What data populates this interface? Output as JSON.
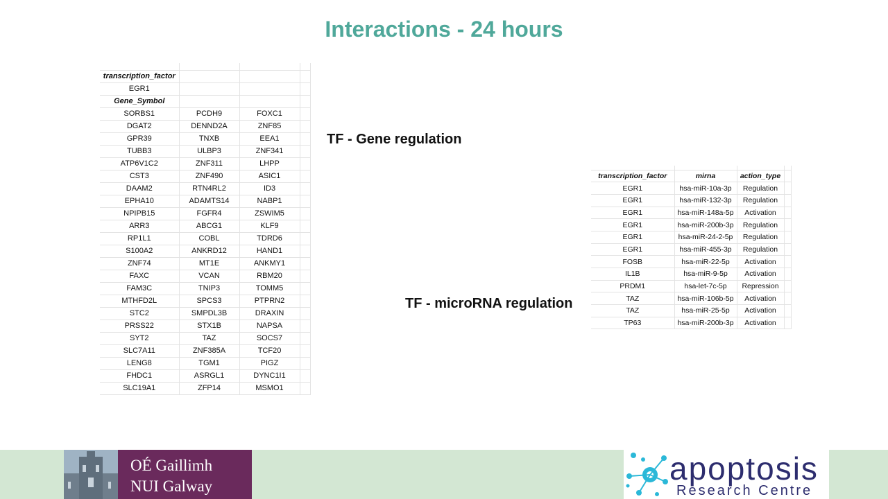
{
  "title": "Interactions - 24 hours",
  "gene_table": {
    "tf_header": "transcription_factor",
    "tf_value": "EGR1",
    "gene_header": "Gene_Symbol",
    "rows": [
      [
        "SORBS1",
        "PCDH9",
        "FOXC1"
      ],
      [
        "DGAT2",
        "DENND2A",
        "ZNF85"
      ],
      [
        "GPR39",
        "TNXB",
        "EEA1"
      ],
      [
        "TUBB3",
        "ULBP3",
        "ZNF341"
      ],
      [
        "ATP6V1C2",
        "ZNF311",
        "LHPP"
      ],
      [
        "CST3",
        "ZNF490",
        "ASIC1"
      ],
      [
        "DAAM2",
        "RTN4RL2",
        "ID3"
      ],
      [
        "EPHA10",
        "ADAMTS14",
        "NABP1"
      ],
      [
        "NPIPB15",
        "FGFR4",
        "ZSWIM5"
      ],
      [
        "ARR3",
        "ABCG1",
        "KLF9"
      ],
      [
        "RP1L1",
        "COBL",
        "TDRD6"
      ],
      [
        "S100A2",
        "ANKRD12",
        "HAND1"
      ],
      [
        "ZNF74",
        "MT1E",
        "ANKMY1"
      ],
      [
        "FAXC",
        "VCAN",
        "RBM20"
      ],
      [
        "FAM3C",
        "TNIP3",
        "TOMM5"
      ],
      [
        "MTHFD2L",
        "SPCS3",
        "PTPRN2"
      ],
      [
        "STC2",
        "SMPDL3B",
        "DRAXIN"
      ],
      [
        "PRSS22",
        "STX1B",
        "NAPSA"
      ],
      [
        "SYT2",
        "TAZ",
        "SOCS7"
      ],
      [
        "SLC7A11",
        "ZNF385A",
        "TCF20"
      ],
      [
        "LENG8",
        "TGM1",
        "PIGZ"
      ],
      [
        "FHDC1",
        "ASRGL1",
        "DYNC1I1"
      ],
      [
        "SLC19A1",
        "ZFP14",
        "MSMO1"
      ]
    ]
  },
  "label_gene": "TF - Gene regulation",
  "label_mirna": "TF - microRNA regulation",
  "mirna_table": {
    "headers": [
      "transcription_factor",
      "mirna",
      "action_type"
    ],
    "rows": [
      [
        "EGR1",
        "hsa-miR-10a-3p",
        "Regulation"
      ],
      [
        "EGR1",
        "hsa-miR-132-3p",
        "Regulation"
      ],
      [
        "EGR1",
        "hsa-miR-148a-5p",
        "Activation"
      ],
      [
        "EGR1",
        "hsa-miR-200b-3p",
        "Regulation"
      ],
      [
        "EGR1",
        "hsa-miR-24-2-5p",
        "Regulation"
      ],
      [
        "EGR1",
        "hsa-miR-455-3p",
        "Regulation"
      ],
      [
        "FOSB",
        "hsa-miR-22-5p",
        "Activation"
      ],
      [
        "IL1B",
        "hsa-miR-9-5p",
        "Activation"
      ],
      [
        "PRDM1",
        "hsa-let-7c-5p",
        "Repression"
      ],
      [
        "TAZ",
        "hsa-miR-106b-5p",
        "Activation"
      ],
      [
        "TAZ",
        "hsa-miR-25-5p",
        "Activation"
      ],
      [
        "TP63",
        "hsa-miR-200b-3p",
        "Activation"
      ]
    ]
  },
  "footer": {
    "nui_line1": "OÉ Gaillimh",
    "nui_line2": "NUI Galway",
    "apop_word": "apoptosis",
    "apop_sub": "Research Centre",
    "colors": {
      "footer_bg": "#d3e7d3",
      "nui_purple": "#6a2a5c",
      "apop_navy": "#2d2d6e",
      "apop_cyan": "#2bb8d8",
      "title_teal": "#4fa89a"
    }
  }
}
